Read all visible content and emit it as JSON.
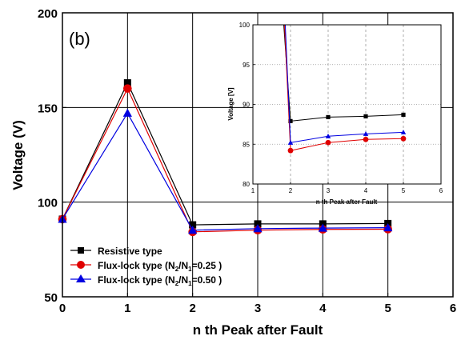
{
  "panel_label": "(b)",
  "chart_data": [
    {
      "type": "line",
      "xlabel": "n th Peak after Fault",
      "ylabel": "Voltage (V)",
      "xlim": [
        0,
        6
      ],
      "ylim": [
        50,
        200
      ],
      "x_ticks": [
        0,
        1,
        2,
        3,
        4,
        5,
        6
      ],
      "y_ticks": [
        50,
        100,
        150,
        200
      ],
      "grid": true,
      "legend_position": "bottom-left",
      "x": [
        0,
        1,
        2,
        3,
        4,
        5
      ],
      "series": [
        {
          "name": "Resistive type",
          "marker": "square",
          "color": "#000000",
          "values": [
            91,
            163,
            88,
            88.5,
            88.5,
            88.7
          ]
        },
        {
          "name": "Flux-lock type (N2/N1=0.25 )",
          "marker": "circle",
          "color": "#e00000",
          "values": [
            91,
            160,
            84.3,
            85.2,
            85.6,
            85.7
          ]
        },
        {
          "name": "Flux-lock type (N2/N1=0.50 )",
          "marker": "triangle",
          "color": "#0000e0",
          "values": [
            91,
            147,
            85.2,
            86,
            86.3,
            86.5
          ]
        }
      ]
    },
    {
      "type": "line",
      "inset": true,
      "xlabel": "n th Peak after Fault",
      "ylabel": "Voltage [V]",
      "xlim": [
        1,
        6
      ],
      "ylim": [
        80,
        100
      ],
      "x_ticks": [
        1,
        2,
        3,
        4,
        5,
        6
      ],
      "y_ticks": [
        80,
        85,
        90,
        95,
        100
      ],
      "grid": "dashed",
      "x": [
        2,
        3,
        4,
        5
      ],
      "series": [
        {
          "name": "Resistive type",
          "marker": "square",
          "color": "#000000",
          "values": [
            87.9,
            88.4,
            88.5,
            88.7
          ]
        },
        {
          "name": "Flux-lock type (N2/N1=0.25 )",
          "marker": "circle",
          "color": "#e00000",
          "values": [
            84.2,
            85.2,
            85.6,
            85.7
          ]
        },
        {
          "name": "Flux-lock type (N2/N1=0.50 )",
          "marker": "triangle",
          "color": "#0000e0",
          "values": [
            85.2,
            86.0,
            86.3,
            86.5
          ]
        }
      ]
    }
  ],
  "legend": [
    {
      "pre": "Flux-lock type (N",
      "sub1": "2",
      "mid": "/N",
      "sub2": "1",
      "post": "=0.25 )",
      "plain": "Resistive type"
    },
    {
      "pre": "Flux-lock type (N",
      "sub1": "2",
      "mid": "/N",
      "sub2": "1",
      "post": "=0.25 )"
    },
    {
      "pre": "Flux-lock type (N",
      "sub1": "2",
      "mid": "/N",
      "sub2": "1",
      "post": "=0.50 )"
    }
  ]
}
